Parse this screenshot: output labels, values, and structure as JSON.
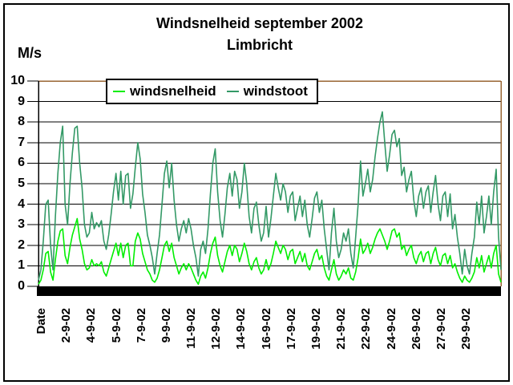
{
  "chart_data": {
    "type": "line",
    "title": "Windsnelheid september 2002",
    "subtitle": "Limbricht",
    "ylabel": "M/s",
    "ylim": [
      0,
      10
    ],
    "yticks": [
      0,
      1,
      2,
      3,
      4,
      5,
      6,
      7,
      8,
      9,
      10
    ],
    "grid": true,
    "legend_position": "top-center",
    "xticklabels": [
      "Date",
      "2-9-02",
      "4-9-02",
      "5-9-02",
      "7-9-02",
      "9-9-02",
      "11-9-02",
      "12-9-02",
      "14-9-02",
      "16-9-02",
      "17-9-02",
      "19-9-02",
      "21-9-02",
      "22-9-02",
      "24-9-02",
      "26-9-02",
      "27-9-02",
      "29-9-02"
    ],
    "colors": {
      "windsnelheid": "#00ee00",
      "windstoot": "#339966",
      "plot_border": "#996633",
      "gridline": "#000000",
      "axis": "#000000"
    },
    "series": [
      {
        "name": "windsnelheid",
        "color": "#00ee00",
        "values": [
          0.1,
          0.3,
          0.8,
          1.6,
          1.7,
          0.7,
          0.3,
          1.3,
          2.2,
          2.7,
          2.8,
          1.5,
          1.1,
          1.9,
          2.5,
          2.9,
          3.3,
          2.3,
          1.8,
          1.1,
          0.8,
          0.9,
          1.3,
          1.0,
          1.1,
          1.0,
          1.2,
          0.7,
          0.5,
          0.9,
          1.3,
          1.7,
          2.1,
          1.5,
          2.1,
          1.4,
          2.0,
          2.1,
          1.0,
          1.0,
          2.2,
          2.6,
          2.3,
          1.6,
          1.2,
          0.8,
          0.6,
          0.3,
          0.2,
          0.4,
          0.8,
          1.4,
          2.0,
          2.2,
          1.7,
          2.1,
          1.4,
          1.0,
          0.6,
          0.9,
          1.1,
          0.8,
          1.1,
          0.9,
          0.6,
          0.3,
          0.1,
          0.5,
          0.7,
          0.4,
          0.9,
          1.6,
          2.1,
          2.4,
          1.5,
          1.0,
          0.7,
          1.2,
          1.7,
          2.0,
          1.5,
          2.0,
          1.8,
          1.2,
          1.6,
          2.1,
          1.7,
          1.1,
          0.8,
          1.2,
          1.4,
          0.9,
          0.6,
          0.8,
          1.3,
          0.8,
          1.1,
          1.6,
          2.2,
          1.9,
          1.6,
          2.0,
          1.8,
          1.3,
          1.7,
          1.8,
          1.1,
          1.4,
          1.7,
          1.2,
          1.6,
          1.0,
          0.8,
          1.2,
          1.6,
          1.8,
          1.3,
          1.5,
          0.9,
          0.5,
          0.3,
          0.8,
          1.3,
          0.6,
          0.3,
          0.5,
          0.8,
          0.6,
          0.9,
          0.4,
          0.3,
          0.7,
          1.4,
          2.3,
          1.6,
          1.8,
          2.1,
          1.6,
          1.9,
          2.3,
          2.6,
          2.8,
          2.5,
          2.2,
          1.8,
          2.2,
          2.7,
          2.8,
          2.4,
          2.6,
          1.8,
          2.0,
          1.5,
          1.8,
          2.0,
          1.4,
          1.1,
          1.5,
          1.7,
          1.2,
          1.6,
          1.7,
          1.1,
          1.6,
          1.9,
          1.3,
          1.0,
          1.5,
          1.6,
          1.1,
          1.5,
          0.9,
          1.1,
          0.7,
          0.4,
          0.2,
          0.5,
          0.3,
          0.2,
          0.4,
          0.7,
          1.4,
          0.9,
          1.5,
          0.7,
          1.1,
          1.5,
          0.9,
          1.6,
          2.0,
          0.6,
          0.2
        ]
      },
      {
        "name": "windstoot",
        "color": "#339966",
        "values": [
          0.3,
          0.8,
          2.2,
          4.0,
          4.2,
          2.0,
          0.8,
          3.4,
          5.5,
          7.0,
          7.8,
          4.0,
          3.0,
          5.0,
          6.5,
          7.7,
          7.8,
          6.0,
          4.8,
          3.0,
          2.4,
          2.6,
          3.6,
          2.8,
          3.1,
          2.9,
          3.2,
          2.2,
          1.8,
          2.5,
          3.5,
          4.6,
          5.5,
          4.2,
          5.6,
          4.0,
          5.4,
          5.5,
          3.8,
          4.5,
          5.8,
          7.0,
          6.2,
          4.5,
          3.6,
          2.5,
          2.0,
          1.4,
          0.6,
          1.6,
          2.5,
          4.0,
          5.5,
          6.1,
          4.8,
          6.0,
          4.2,
          3.0,
          2.2,
          2.8,
          3.2,
          2.6,
          3.3,
          2.8,
          2.0,
          1.4,
          0.5,
          1.8,
          2.2,
          1.6,
          2.8,
          4.5,
          6.0,
          6.7,
          4.6,
          3.2,
          2.4,
          3.5,
          4.8,
          5.5,
          4.4,
          5.6,
          5.2,
          3.8,
          4.6,
          6.0,
          5.0,
          3.4,
          2.6,
          3.8,
          4.1,
          3.0,
          2.2,
          2.6,
          3.9,
          2.4,
          3.3,
          4.4,
          5.5,
          4.8,
          4.2,
          5.0,
          4.6,
          3.6,
          4.4,
          4.6,
          3.2,
          3.8,
          4.4,
          3.4,
          4.2,
          3.0,
          2.4,
          3.3,
          4.3,
          4.6,
          3.6,
          4.2,
          2.8,
          1.8,
          0.8,
          2.6,
          3.8,
          2.2,
          1.4,
          1.8,
          2.6,
          2.2,
          2.8,
          1.6,
          0.9,
          2.4,
          4.0,
          6.1,
          4.4,
          5.0,
          5.7,
          4.6,
          5.2,
          6.3,
          7.2,
          8.0,
          8.5,
          7.0,
          5.6,
          6.4,
          7.4,
          7.6,
          6.8,
          7.2,
          5.4,
          5.8,
          4.6,
          5.2,
          5.6,
          4.2,
          3.4,
          4.4,
          4.8,
          3.8,
          4.6,
          4.9,
          3.6,
          4.6,
          5.4,
          4.0,
          3.2,
          4.4,
          4.6,
          3.4,
          4.5,
          2.8,
          3.5,
          2.4,
          1.6,
          0.6,
          1.8,
          1.0,
          0.6,
          1.6,
          2.4,
          4.1,
          3.0,
          4.4,
          2.6,
          3.4,
          4.4,
          3.0,
          4.6,
          5.7,
          2.4,
          0.8
        ]
      }
    ]
  }
}
